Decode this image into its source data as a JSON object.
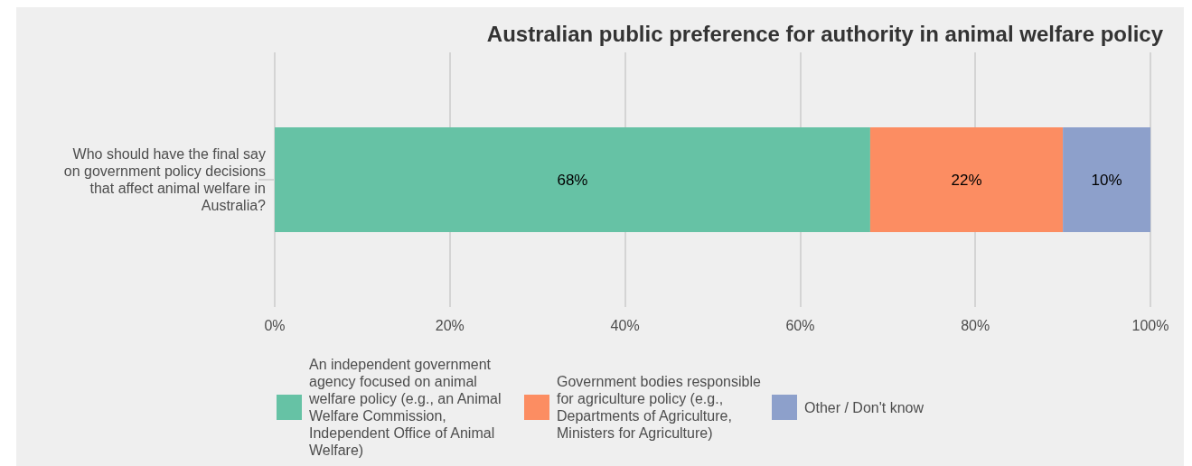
{
  "chart_data": {
    "type": "bar",
    "orientation": "horizontal",
    "stacked": true,
    "title": "Australian public preference for authority in animal welfare policy",
    "categories": [
      "Who should have the final say on government policy decisions that affect animal welfare in Australia?"
    ],
    "series": [
      {
        "name": "An independent government agency focused on animal welfare policy (e.g., an Animal Welfare Commission, Independent Office of Animal Welfare)",
        "color": "#66c2a5",
        "values": [
          68
        ]
      },
      {
        "name": "Government bodies responsible for agriculture policy (e.g., Departments of Agriculture, Ministers for Agriculture)",
        "color": "#fc8d62",
        "values": [
          22
        ]
      },
      {
        "name": "Other / Don't know",
        "color": "#8da0cb",
        "values": [
          10
        ]
      }
    ],
    "value_labels": [
      [
        "68%"
      ],
      [
        "22%"
      ],
      [
        "10%"
      ]
    ],
    "xlim": [
      0,
      100
    ],
    "xticks": [
      {
        "value": 0,
        "label": "0%"
      },
      {
        "value": 20,
        "label": "20%"
      },
      {
        "value": 40,
        "label": "40%"
      },
      {
        "value": 60,
        "label": "60%"
      },
      {
        "value": 80,
        "label": "80%"
      },
      {
        "value": 100,
        "label": "100%"
      }
    ],
    "grid": "x",
    "legend": "bottom"
  }
}
